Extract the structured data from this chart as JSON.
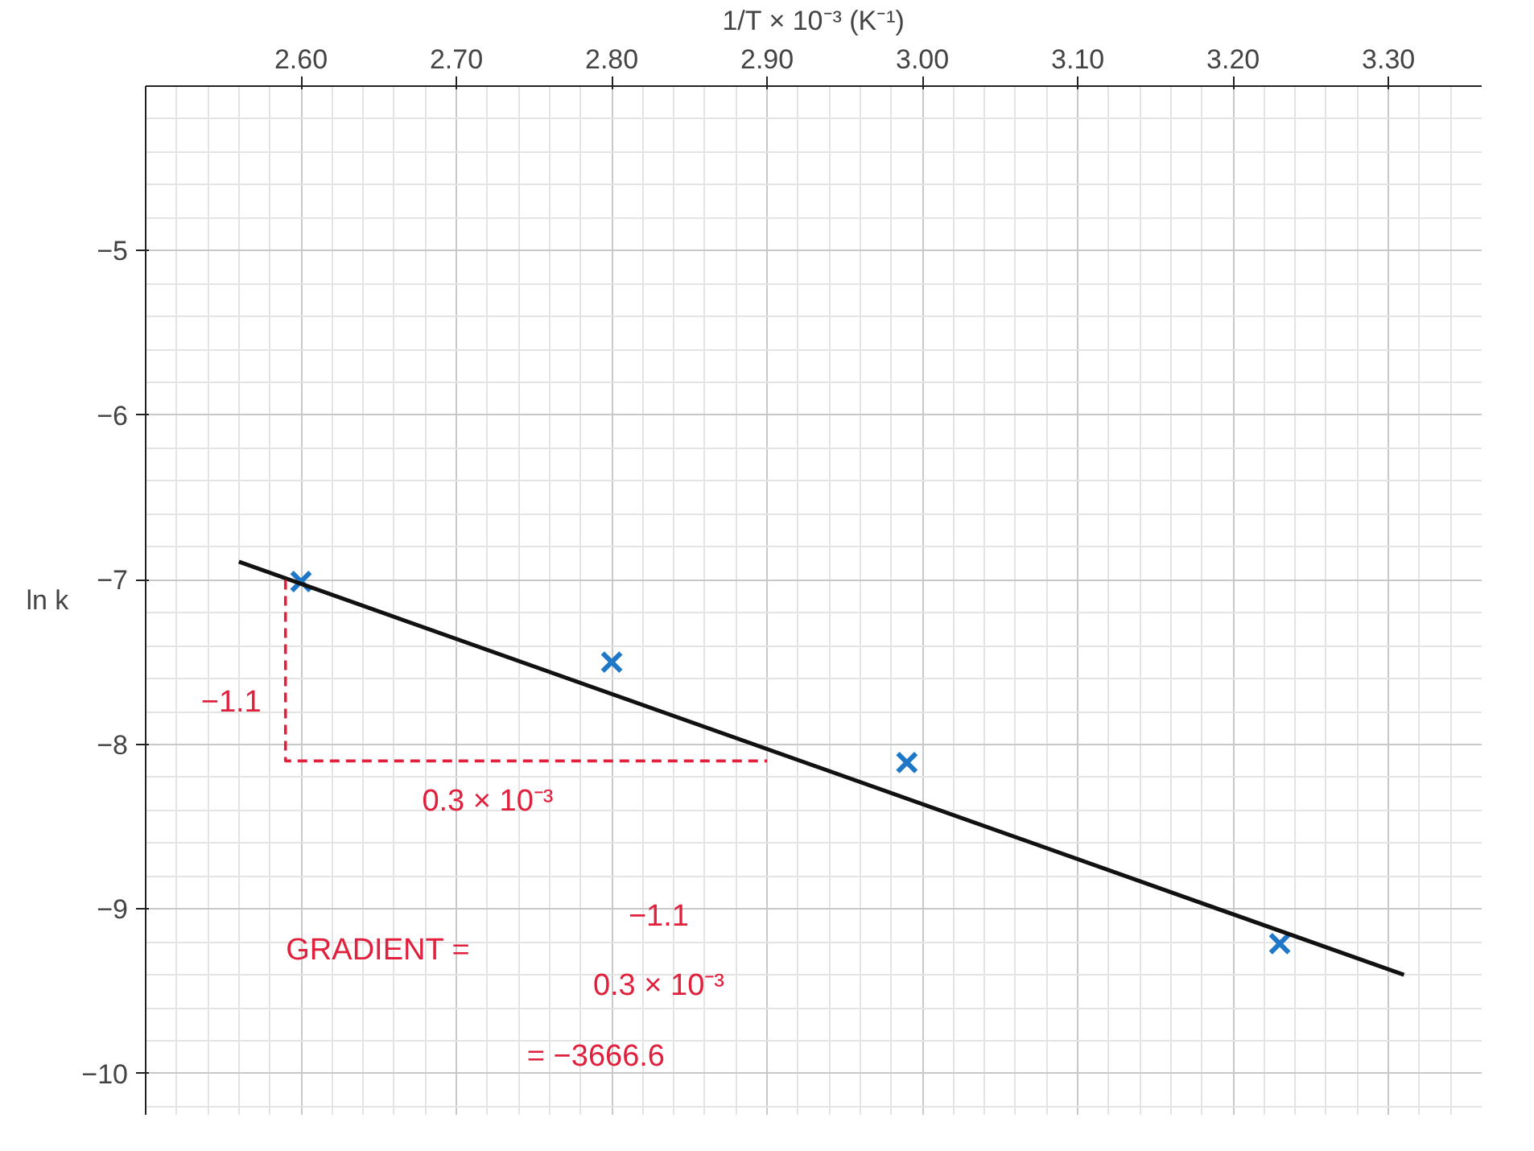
{
  "chart_data": {
    "type": "scatter",
    "xlabel": "1/T × 10⁻³ (K⁻¹)",
    "ylabel": "ln k",
    "xlim": [
      2.5,
      3.36
    ],
    "ylim": [
      -10.25,
      -4
    ],
    "xticks": [
      {
        "value": 2.6,
        "label": "2.60"
      },
      {
        "value": 2.7,
        "label": "2.70"
      },
      {
        "value": 2.8,
        "label": "2.80"
      },
      {
        "value": 2.9,
        "label": "2.90"
      },
      {
        "value": 3.0,
        "label": "3.00"
      },
      {
        "value": 3.1,
        "label": "3.10"
      },
      {
        "value": 3.2,
        "label": "3.20"
      },
      {
        "value": 3.3,
        "label": "3.30"
      }
    ],
    "yticks": [
      {
        "value": -5,
        "label": "−5"
      },
      {
        "value": -6,
        "label": "−6"
      },
      {
        "value": -7,
        "label": "−7"
      },
      {
        "value": -8,
        "label": "−8"
      },
      {
        "value": -9,
        "label": "−9"
      },
      {
        "value": -10,
        "label": "−10"
      }
    ],
    "grid": true,
    "series": [
      {
        "marker": "cross",
        "color": "#1f77c8",
        "x": [
          2.6,
          2.8,
          2.99,
          3.23
        ],
        "values": [
          -7.01,
          -7.5,
          -8.11,
          -9.21
        ]
      },
      {
        "type": "line",
        "marker": "none",
        "color": "#111111",
        "x": [
          2.56,
          3.31
        ],
        "values": [
          -6.89,
          -9.4
        ]
      },
      {
        "type": "line",
        "marker": "none",
        "line_style": "dashed",
        "color": "#e0203c",
        "x": [
          2.59,
          2.59,
          2.9
        ],
        "values": [
          -7.0,
          -8.1,
          -8.1
        ]
      }
    ],
    "annotations": [
      "−1.1",
      "0.3 × 10⁻³",
      "GRADIENT =",
      "−1.1",
      "0.3 × 10⁻³",
      "= −3666.6"
    ]
  }
}
